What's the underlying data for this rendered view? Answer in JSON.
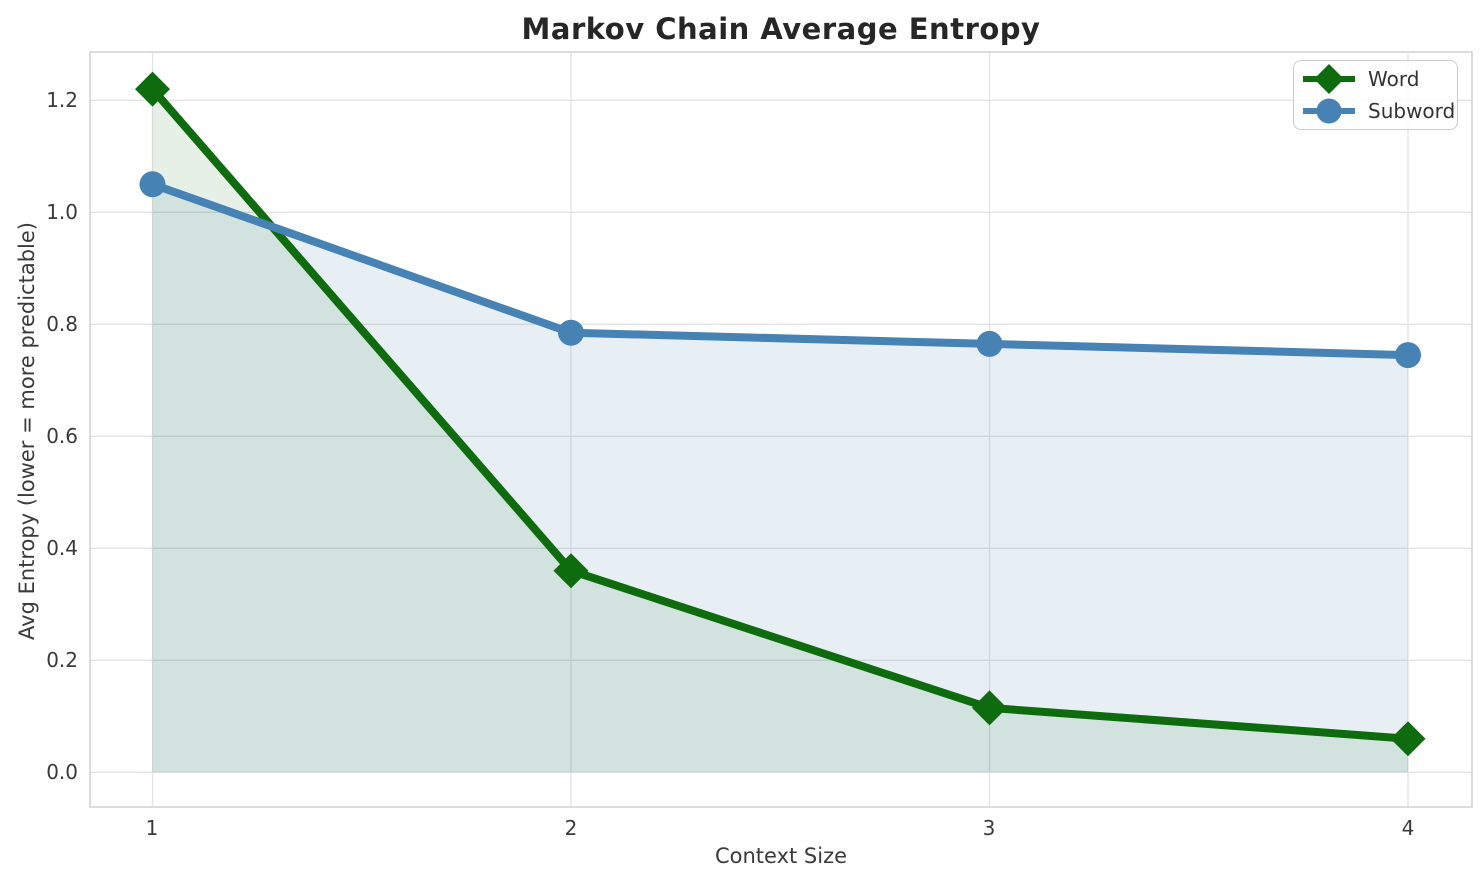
{
  "chart_data": {
    "type": "line",
    "title": "Markov Chain Average Entropy",
    "xlabel": "Context Size",
    "ylabel": "Avg Entropy (lower = more predictable)",
    "x": [
      1,
      2,
      3,
      4
    ],
    "series": [
      {
        "name": "Word",
        "marker": "diamond",
        "color": "#0e6b0e",
        "fill_opacity": 0.1,
        "values": [
          1.22,
          0.36,
          0.115,
          0.06
        ]
      },
      {
        "name": "Subword",
        "marker": "circle",
        "color": "#4682b4",
        "fill_opacity": 0.13,
        "values": [
          1.05,
          0.785,
          0.765,
          0.745
        ]
      }
    ],
    "fill_to_zero": true,
    "grid": true,
    "legend_position": "upper right",
    "xlim": [
      1,
      4
    ],
    "ylim": [
      0.0,
      1.2
    ],
    "xtick_labels": [
      "1",
      "2",
      "3",
      "4"
    ],
    "ytick_labels": [
      "0.0",
      "0.2",
      "0.4",
      "0.6",
      "0.8",
      "1.0",
      "1.2"
    ],
    "colors": {
      "grid": "#e3e3e3",
      "axes_border": "#d4d4d4",
      "title_text": "#262626",
      "tick_text": "#3a3a3a"
    },
    "legend": {
      "items": [
        {
          "label": "Word"
        },
        {
          "label": "Subword"
        }
      ]
    }
  }
}
